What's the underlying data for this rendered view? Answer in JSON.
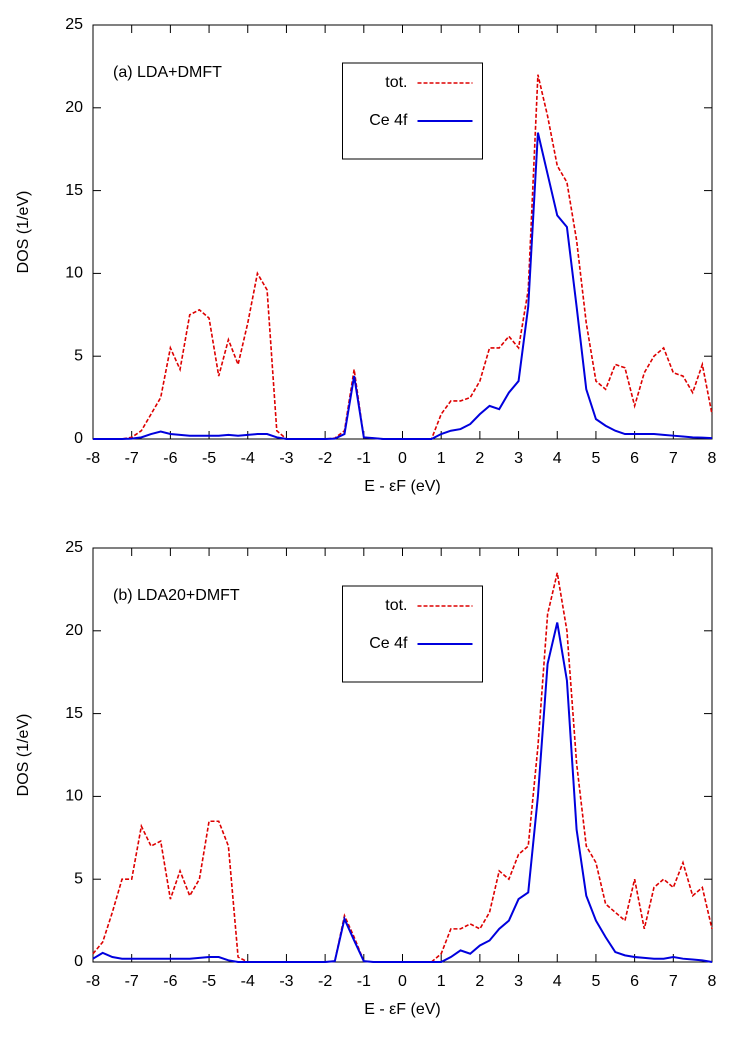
{
  "chart_data": [
    {
      "type": "line",
      "annotation": "(a) LDA+DMFT",
      "xlabel": "E - εF (eV)",
      "ylabel": "DOS (1/eV)",
      "x": [
        -8,
        -7.75,
        -7.5,
        -7.25,
        -7,
        -6.75,
        -6.5,
        -6.25,
        -6,
        -5.75,
        -5.5,
        -5.25,
        -5,
        -4.75,
        -4.5,
        -4.25,
        -4,
        -3.75,
        -3.5,
        -3.25,
        -3,
        -2.75,
        -2.5,
        -2.25,
        -2,
        -1.75,
        -1.5,
        -1.25,
        -1,
        -0.75,
        -0.5,
        -0.25,
        0,
        0.25,
        0.5,
        0.75,
        1,
        1.25,
        1.5,
        1.75,
        2,
        2.25,
        2.5,
        2.75,
        3,
        3.25,
        3.5,
        3.75,
        4,
        4.25,
        4.5,
        4.75,
        5,
        5.25,
        5.5,
        5.75,
        6,
        6.25,
        6.5,
        6.75,
        7,
        7.25,
        7.5,
        7.75,
        8
      ],
      "series": [
        {
          "name": "tot.",
          "color": "#dd0000",
          "style": "dashed",
          "values": [
            0,
            0,
            0,
            0,
            0.1,
            0.5,
            1.5,
            2.5,
            5.5,
            4.2,
            7.5,
            7.8,
            7.3,
            3.8,
            6,
            4.5,
            7,
            10,
            9,
            0.5,
            0,
            0,
            0,
            0,
            0,
            0.05,
            0.5,
            4.2,
            0.1,
            0.05,
            0,
            0,
            0,
            0,
            0,
            0,
            1.5,
            2.3,
            2.3,
            2.5,
            3.5,
            5.5,
            5.5,
            6.2,
            5.5,
            9,
            22,
            19.5,
            16.5,
            15.5,
            12,
            7,
            3.5,
            3,
            4.5,
            4.3,
            2,
            4,
            5,
            5.5,
            4,
            3.8,
            2.8,
            4.5,
            1.5
          ]
        },
        {
          "name": "Ce 4f",
          "color": "#0000dd",
          "style": "solid",
          "values": [
            0,
            0,
            0,
            0,
            0.02,
            0.1,
            0.3,
            0.45,
            0.3,
            0.25,
            0.2,
            0.2,
            0.2,
            0.2,
            0.25,
            0.2,
            0.25,
            0.3,
            0.3,
            0.1,
            0,
            0,
            0,
            0,
            0,
            0.02,
            0.3,
            3.8,
            0.1,
            0.05,
            0,
            0,
            0,
            0,
            0,
            0,
            0.3,
            0.5,
            0.6,
            0.9,
            1.5,
            2,
            1.8,
            2.8,
            3.5,
            8,
            18.5,
            16,
            13.5,
            12.8,
            8,
            3,
            1.2,
            0.8,
            0.5,
            0.3,
            0.3,
            0.3,
            0.3,
            0.25,
            0.2,
            0.15,
            0.1,
            0.08,
            0.05
          ]
        }
      ],
      "xlim": [
        -8,
        8
      ],
      "ylim": [
        0,
        25
      ],
      "xticks": [
        -8,
        -7,
        -6,
        -5,
        -4,
        -3,
        -2,
        -1,
        0,
        1,
        2,
        3,
        4,
        5,
        6,
        7,
        8
      ],
      "yticks": [
        0,
        5,
        10,
        15,
        20,
        25
      ],
      "legend": "upper center"
    },
    {
      "type": "line",
      "annotation": "(b) LDA20+DMFT",
      "xlabel": "E - εF (eV)",
      "ylabel": "DOS (1/eV)",
      "x": [
        -8,
        -7.75,
        -7.5,
        -7.25,
        -7,
        -6.75,
        -6.5,
        -6.25,
        -6,
        -5.75,
        -5.5,
        -5.25,
        -5,
        -4.75,
        -4.5,
        -4.25,
        -4,
        -3.75,
        -3.5,
        -3.25,
        -3,
        -2.75,
        -2.5,
        -2.25,
        -2,
        -1.75,
        -1.5,
        -1.25,
        -1,
        -0.75,
        -0.5,
        -0.25,
        0,
        0.25,
        0.5,
        0.75,
        1,
        1.25,
        1.5,
        1.75,
        2,
        2.25,
        2.5,
        2.75,
        3,
        3.25,
        3.5,
        3.75,
        4,
        4.25,
        4.5,
        4.75,
        5,
        5.25,
        5.5,
        5.75,
        6,
        6.25,
        6.5,
        6.75,
        7,
        7.25,
        7.5,
        7.75,
        8
      ],
      "series": [
        {
          "name": "tot.",
          "color": "#dd0000",
          "style": "dashed",
          "values": [
            0.5,
            1.2,
            3,
            5,
            5,
            8.2,
            7,
            7.3,
            3.8,
            5.5,
            4,
            5,
            8.5,
            8.5,
            7,
            0.3,
            0,
            0,
            0,
            0,
            0,
            0,
            0,
            0,
            0,
            0.05,
            2.8,
            1.5,
            0.05,
            0,
            0,
            0,
            0,
            0,
            0,
            0,
            0.5,
            2,
            2,
            2.3,
            2,
            3,
            5.5,
            5,
            6.5,
            7,
            13,
            21,
            23.5,
            20,
            12,
            7,
            6,
            3.5,
            3,
            2.5,
            5,
            2,
            4.5,
            5,
            4.5,
            6,
            4,
            4.5,
            2
          ]
        },
        {
          "name": "Ce 4f",
          "color": "#0000dd",
          "style": "solid",
          "values": [
            0.2,
            0.55,
            0.3,
            0.2,
            0.2,
            0.2,
            0.2,
            0.2,
            0.2,
            0.2,
            0.2,
            0.25,
            0.3,
            0.3,
            0.1,
            0,
            0,
            0,
            0,
            0,
            0,
            0,
            0,
            0,
            0,
            0.05,
            2.6,
            1.3,
            0.05,
            0,
            0,
            0,
            0,
            0,
            0,
            0,
            0,
            0.3,
            0.7,
            0.5,
            1,
            1.3,
            2,
            2.5,
            3.8,
            4.2,
            10,
            18,
            20.5,
            17,
            8,
            4,
            2.5,
            1.5,
            0.6,
            0.4,
            0.3,
            0.25,
            0.2,
            0.2,
            0.3,
            0.2,
            0.15,
            0.1,
            0
          ]
        }
      ],
      "xlim": [
        -8,
        8
      ],
      "ylim": [
        0,
        25
      ],
      "xticks": [
        -8,
        -7,
        -6,
        -5,
        -4,
        -3,
        -2,
        -1,
        0,
        1,
        2,
        3,
        4,
        5,
        6,
        7,
        8
      ],
      "yticks": [
        0,
        5,
        10,
        15,
        20,
        25
      ],
      "legend": "upper center"
    }
  ]
}
